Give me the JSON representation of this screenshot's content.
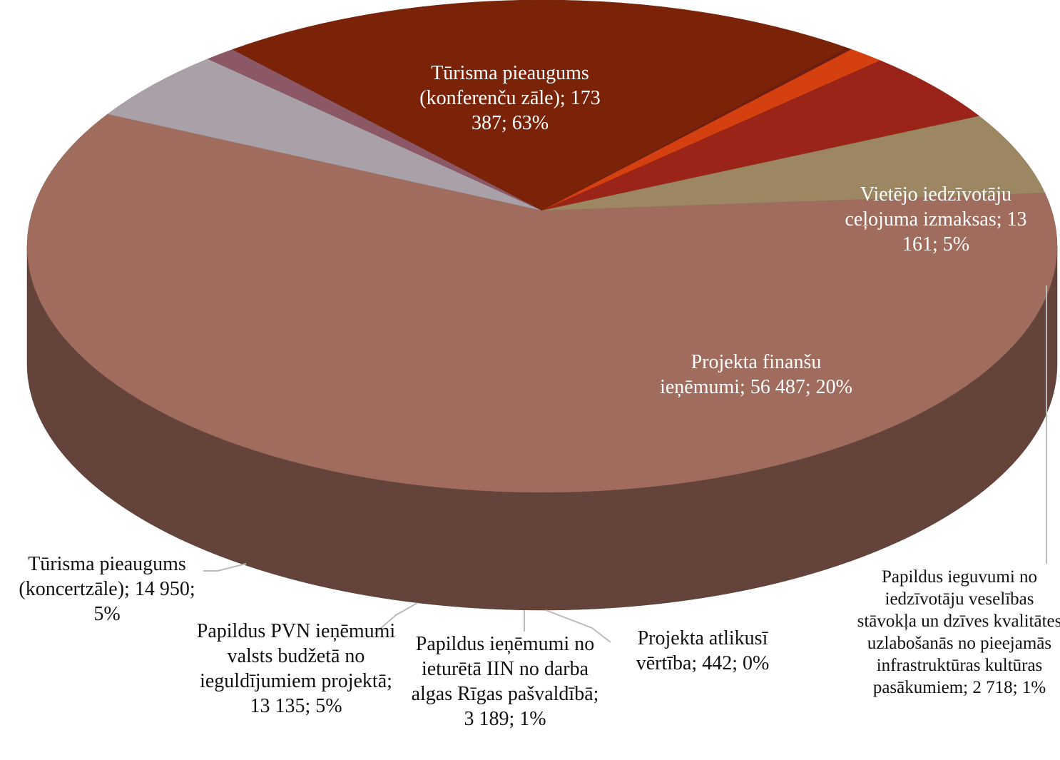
{
  "chart_data": {
    "type": "pie3d",
    "values": [
      173387,
      13161,
      2718,
      56487,
      442,
      3189,
      13135,
      14950
    ],
    "value_labels": [
      "Tūrisma pieaugums (konferenču zāle); 173 387; 63%",
      "Vietējo iedzīvotāju ceļojuma izmaksas; 13 161; 5%",
      "Papildus ieguvumi no iedzīvotāju veselības stāvokļa un dzīves kvalitātes uzlabošanās no pieejamās infrastruktūras kultūras pasākumiem; 2 718; 1%",
      "Projekta finanšu ieņēmumi; 56 487; 20%",
      "Projekta atlikusī vērtība; 442; 0%",
      "Papildus ieņēmumi no ieturētā IIN no darba algas Rīgas pašvaldībā; 3 189; 1%",
      "Papildus PVN ieņēmumi valsts budžetā no ieguldījumiem projektā; 13 135; 5%",
      "Tūrisma pieaugums (koncertzāle); 14 950; 5%"
    ],
    "colors": [
      "#9f6c5e",
      "#a9a0a8",
      "#8c5866",
      "#7b2309",
      "#6e1d10",
      "#d4400f",
      "#9b2418",
      "#9d8763"
    ]
  }
}
